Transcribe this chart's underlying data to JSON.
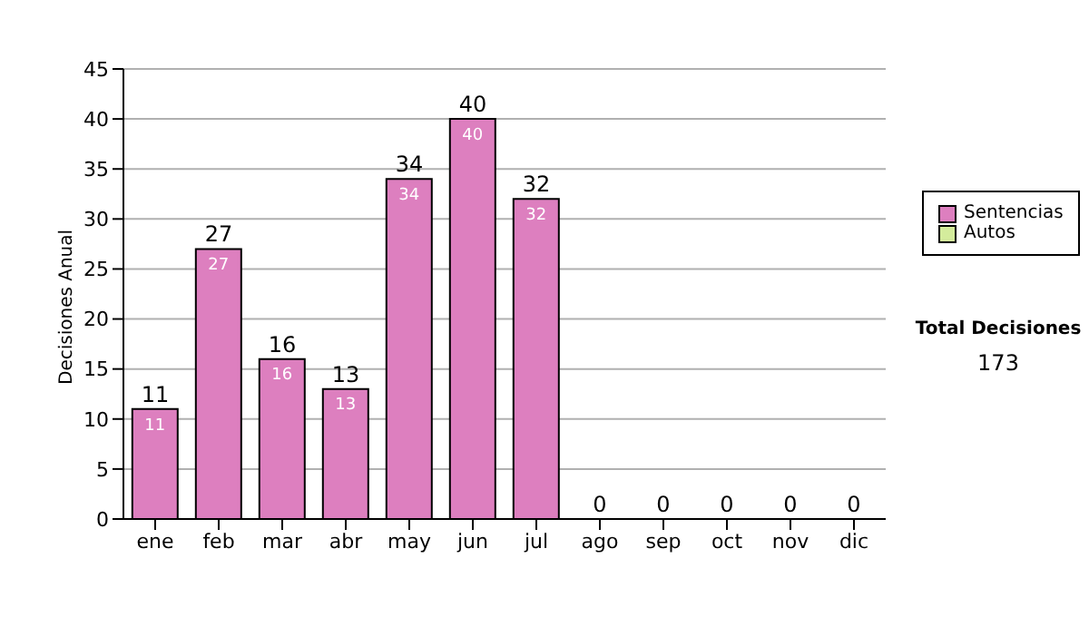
{
  "chart_data": {
    "type": "bar",
    "stacked": true,
    "ylabel": "Decisiones Anual",
    "categories": [
      "ene",
      "feb",
      "mar",
      "abr",
      "may",
      "jun",
      "jul",
      "ago",
      "sep",
      "oct",
      "nov",
      "dic"
    ],
    "series": [
      {
        "name": "Sentencias",
        "color": "#dd7fbf",
        "values": [
          11,
          27,
          16,
          13,
          34,
          40,
          32,
          0,
          0,
          0,
          0,
          0
        ],
        "value_labels": [
          "11",
          "27",
          "16",
          "13",
          "34",
          "40",
          "32",
          null,
          null,
          null,
          null,
          null
        ]
      },
      {
        "name": "Autos",
        "color": "#d4ec9c",
        "values": [
          0,
          0,
          0,
          0,
          0,
          0,
          0,
          0,
          0,
          0,
          0,
          0
        ]
      }
    ],
    "totals": [
      "11",
      "27",
      "16",
      "13",
      "34",
      "40",
      "32",
      "0",
      "0",
      "0",
      "0",
      "0"
    ],
    "ylim": [
      0,
      45
    ],
    "yticks": [
      0,
      5,
      10,
      15,
      20,
      25,
      30,
      35,
      40,
      45
    ],
    "grid": "y",
    "legend": "right",
    "annotations": [
      "Total Decisiones",
      "173"
    ]
  }
}
